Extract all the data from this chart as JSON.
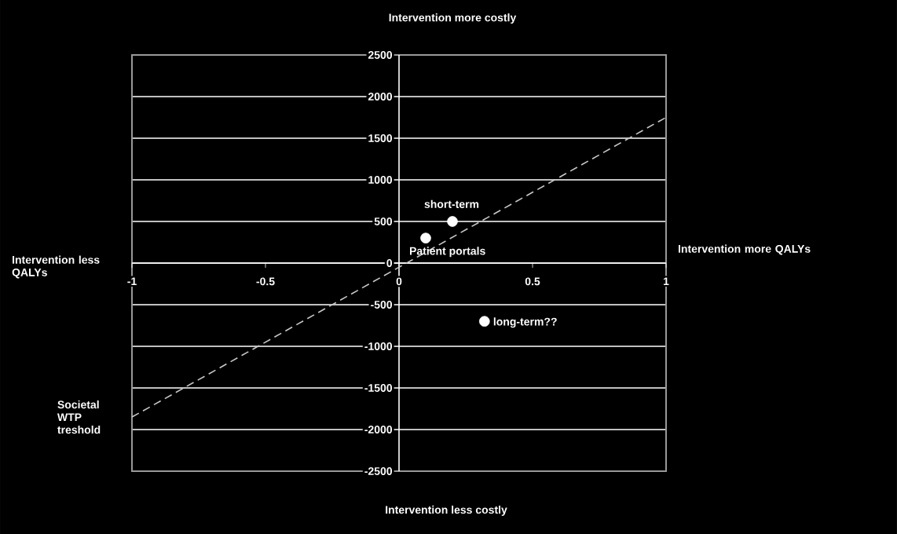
{
  "chart_data": {
    "type": "scatter",
    "title": "Intervention more costly",
    "xlabel": "Intervention less costly",
    "annotations": [
      "Intervention less QALYs",
      "Intervention more QALYs",
      {
        "text": "short-term",
        "x": 0.2,
        "y": 500
      },
      {
        "text": "Patient portals",
        "x": 0.1,
        "y": 300
      },
      {
        "text": "long-term??",
        "x": 0.32,
        "y": -700
      }
    ],
    "series": [
      {
        "x": [
          0.1,
          0.2,
          0.32
        ],
        "values": [
          300,
          500,
          -700
        ],
        "color": "#ffffff"
      },
      {
        "type": "line",
        "name": "Societal WTP treshold",
        "x": [
          -1,
          1
        ],
        "values": [
          -1850,
          1750
        ],
        "color": "#c8c8c8",
        "line_style": "dashed",
        "marker": "none"
      }
    ],
    "xlim": [
      -1,
      1
    ],
    "ylim": [
      -2500,
      2500
    ],
    "xticks": [
      -1,
      -0.5,
      0,
      0.5,
      1
    ],
    "yticks": [
      -2500,
      -2000,
      -1500,
      -1000,
      -500,
      0,
      500,
      1000,
      1500,
      2000,
      2500
    ],
    "grid": "y",
    "marker": "circle"
  }
}
